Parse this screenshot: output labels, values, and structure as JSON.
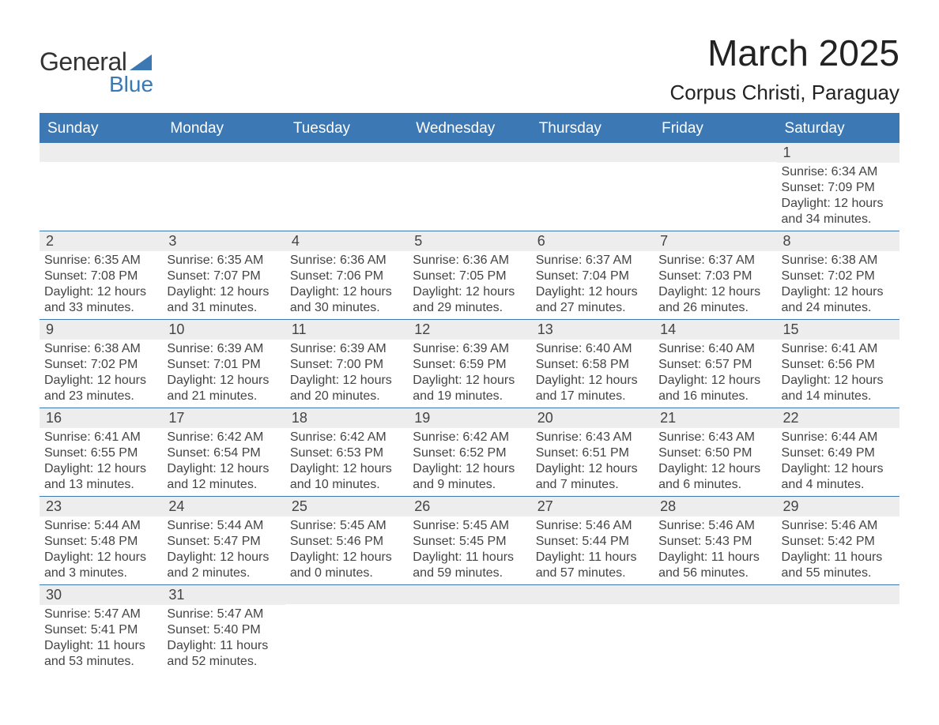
{
  "logo": {
    "line1": "General",
    "line2": "Blue"
  },
  "title": "March 2025",
  "location": "Corpus Christi, Paraguay",
  "colors": {
    "accent": "#3c78b4",
    "header_bg": "#3c78b4",
    "header_text": "#ffffff",
    "daynum_bg": "#ededed",
    "text": "#444444",
    "page_bg": "#ffffff"
  },
  "weekdays": [
    "Sunday",
    "Monday",
    "Tuesday",
    "Wednesday",
    "Thursday",
    "Friday",
    "Saturday"
  ],
  "weeks": [
    [
      {
        "n": "",
        "sunrise": "",
        "sunset": "",
        "daylight": ""
      },
      {
        "n": "",
        "sunrise": "",
        "sunset": "",
        "daylight": ""
      },
      {
        "n": "",
        "sunrise": "",
        "sunset": "",
        "daylight": ""
      },
      {
        "n": "",
        "sunrise": "",
        "sunset": "",
        "daylight": ""
      },
      {
        "n": "",
        "sunrise": "",
        "sunset": "",
        "daylight": ""
      },
      {
        "n": "",
        "sunrise": "",
        "sunset": "",
        "daylight": ""
      },
      {
        "n": "1",
        "sunrise": "Sunrise: 6:34 AM",
        "sunset": "Sunset: 7:09 PM",
        "daylight": "Daylight: 12 hours and 34 minutes."
      }
    ],
    [
      {
        "n": "2",
        "sunrise": "Sunrise: 6:35 AM",
        "sunset": "Sunset: 7:08 PM",
        "daylight": "Daylight: 12 hours and 33 minutes."
      },
      {
        "n": "3",
        "sunrise": "Sunrise: 6:35 AM",
        "sunset": "Sunset: 7:07 PM",
        "daylight": "Daylight: 12 hours and 31 minutes."
      },
      {
        "n": "4",
        "sunrise": "Sunrise: 6:36 AM",
        "sunset": "Sunset: 7:06 PM",
        "daylight": "Daylight: 12 hours and 30 minutes."
      },
      {
        "n": "5",
        "sunrise": "Sunrise: 6:36 AM",
        "sunset": "Sunset: 7:05 PM",
        "daylight": "Daylight: 12 hours and 29 minutes."
      },
      {
        "n": "6",
        "sunrise": "Sunrise: 6:37 AM",
        "sunset": "Sunset: 7:04 PM",
        "daylight": "Daylight: 12 hours and 27 minutes."
      },
      {
        "n": "7",
        "sunrise": "Sunrise: 6:37 AM",
        "sunset": "Sunset: 7:03 PM",
        "daylight": "Daylight: 12 hours and 26 minutes."
      },
      {
        "n": "8",
        "sunrise": "Sunrise: 6:38 AM",
        "sunset": "Sunset: 7:02 PM",
        "daylight": "Daylight: 12 hours and 24 minutes."
      }
    ],
    [
      {
        "n": "9",
        "sunrise": "Sunrise: 6:38 AM",
        "sunset": "Sunset: 7:02 PM",
        "daylight": "Daylight: 12 hours and 23 minutes."
      },
      {
        "n": "10",
        "sunrise": "Sunrise: 6:39 AM",
        "sunset": "Sunset: 7:01 PM",
        "daylight": "Daylight: 12 hours and 21 minutes."
      },
      {
        "n": "11",
        "sunrise": "Sunrise: 6:39 AM",
        "sunset": "Sunset: 7:00 PM",
        "daylight": "Daylight: 12 hours and 20 minutes."
      },
      {
        "n": "12",
        "sunrise": "Sunrise: 6:39 AM",
        "sunset": "Sunset: 6:59 PM",
        "daylight": "Daylight: 12 hours and 19 minutes."
      },
      {
        "n": "13",
        "sunrise": "Sunrise: 6:40 AM",
        "sunset": "Sunset: 6:58 PM",
        "daylight": "Daylight: 12 hours and 17 minutes."
      },
      {
        "n": "14",
        "sunrise": "Sunrise: 6:40 AM",
        "sunset": "Sunset: 6:57 PM",
        "daylight": "Daylight: 12 hours and 16 minutes."
      },
      {
        "n": "15",
        "sunrise": "Sunrise: 6:41 AM",
        "sunset": "Sunset: 6:56 PM",
        "daylight": "Daylight: 12 hours and 14 minutes."
      }
    ],
    [
      {
        "n": "16",
        "sunrise": "Sunrise: 6:41 AM",
        "sunset": "Sunset: 6:55 PM",
        "daylight": "Daylight: 12 hours and 13 minutes."
      },
      {
        "n": "17",
        "sunrise": "Sunrise: 6:42 AM",
        "sunset": "Sunset: 6:54 PM",
        "daylight": "Daylight: 12 hours and 12 minutes."
      },
      {
        "n": "18",
        "sunrise": "Sunrise: 6:42 AM",
        "sunset": "Sunset: 6:53 PM",
        "daylight": "Daylight: 12 hours and 10 minutes."
      },
      {
        "n": "19",
        "sunrise": "Sunrise: 6:42 AM",
        "sunset": "Sunset: 6:52 PM",
        "daylight": "Daylight: 12 hours and 9 minutes."
      },
      {
        "n": "20",
        "sunrise": "Sunrise: 6:43 AM",
        "sunset": "Sunset: 6:51 PM",
        "daylight": "Daylight: 12 hours and 7 minutes."
      },
      {
        "n": "21",
        "sunrise": "Sunrise: 6:43 AM",
        "sunset": "Sunset: 6:50 PM",
        "daylight": "Daylight: 12 hours and 6 minutes."
      },
      {
        "n": "22",
        "sunrise": "Sunrise: 6:44 AM",
        "sunset": "Sunset: 6:49 PM",
        "daylight": "Daylight: 12 hours and 4 minutes."
      }
    ],
    [
      {
        "n": "23",
        "sunrise": "Sunrise: 5:44 AM",
        "sunset": "Sunset: 5:48 PM",
        "daylight": "Daylight: 12 hours and 3 minutes."
      },
      {
        "n": "24",
        "sunrise": "Sunrise: 5:44 AM",
        "sunset": "Sunset: 5:47 PM",
        "daylight": "Daylight: 12 hours and 2 minutes."
      },
      {
        "n": "25",
        "sunrise": "Sunrise: 5:45 AM",
        "sunset": "Sunset: 5:46 PM",
        "daylight": "Daylight: 12 hours and 0 minutes."
      },
      {
        "n": "26",
        "sunrise": "Sunrise: 5:45 AM",
        "sunset": "Sunset: 5:45 PM",
        "daylight": "Daylight: 11 hours and 59 minutes."
      },
      {
        "n": "27",
        "sunrise": "Sunrise: 5:46 AM",
        "sunset": "Sunset: 5:44 PM",
        "daylight": "Daylight: 11 hours and 57 minutes."
      },
      {
        "n": "28",
        "sunrise": "Sunrise: 5:46 AM",
        "sunset": "Sunset: 5:43 PM",
        "daylight": "Daylight: 11 hours and 56 minutes."
      },
      {
        "n": "29",
        "sunrise": "Sunrise: 5:46 AM",
        "sunset": "Sunset: 5:42 PM",
        "daylight": "Daylight: 11 hours and 55 minutes."
      }
    ],
    [
      {
        "n": "30",
        "sunrise": "Sunrise: 5:47 AM",
        "sunset": "Sunset: 5:41 PM",
        "daylight": "Daylight: 11 hours and 53 minutes."
      },
      {
        "n": "31",
        "sunrise": "Sunrise: 5:47 AM",
        "sunset": "Sunset: 5:40 PM",
        "daylight": "Daylight: 11 hours and 52 minutes."
      },
      {
        "n": "",
        "sunrise": "",
        "sunset": "",
        "daylight": ""
      },
      {
        "n": "",
        "sunrise": "",
        "sunset": "",
        "daylight": ""
      },
      {
        "n": "",
        "sunrise": "",
        "sunset": "",
        "daylight": ""
      },
      {
        "n": "",
        "sunrise": "",
        "sunset": "",
        "daylight": ""
      },
      {
        "n": "",
        "sunrise": "",
        "sunset": "",
        "daylight": ""
      }
    ]
  ]
}
